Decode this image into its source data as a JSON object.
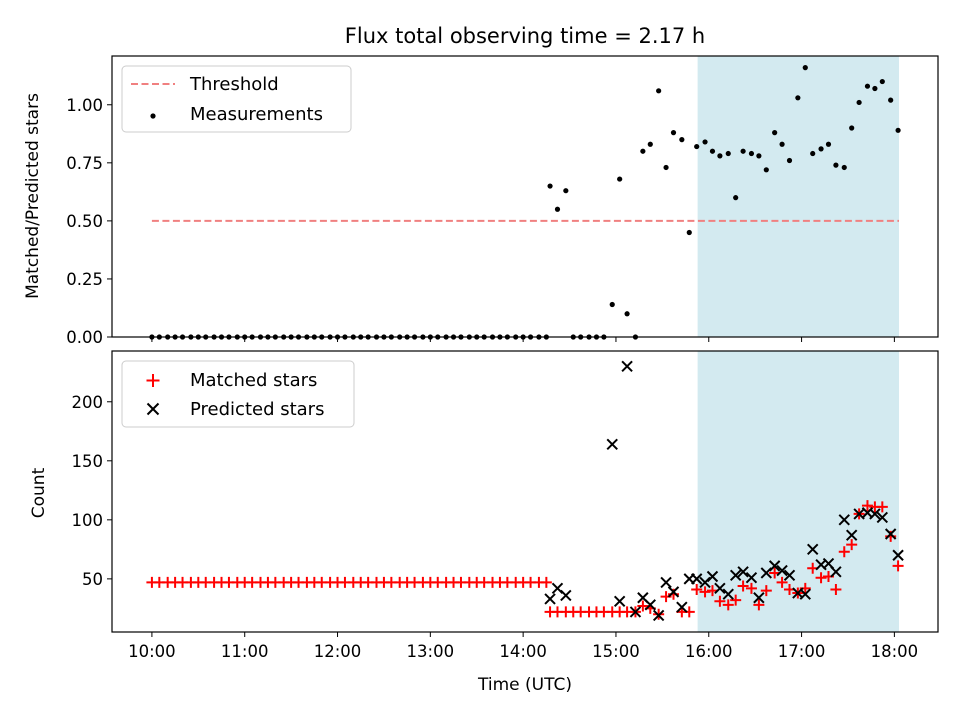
{
  "chart_data": [
    {
      "type": "scatter",
      "title": "Flux total observing time = 2.17 h",
      "xlabel": "",
      "ylabel": "Matched/Predicted stars",
      "xlim": [
        9.57,
        18.47
      ],
      "ylim": [
        0.0,
        1.21
      ],
      "yticks": [
        0.0,
        0.25,
        0.5,
        0.75,
        1.0
      ],
      "ytick_labels": [
        "0.00",
        "0.25",
        "0.50",
        "0.75",
        "1.00"
      ],
      "shaded_region": {
        "x_start": 15.88,
        "x_end": 18.05,
        "color": "#d3eaf0"
      },
      "legend": {
        "placement": "upper left",
        "entries": [
          "Threshold",
          "Measurements"
        ]
      },
      "threshold": {
        "name": "Threshold",
        "value": 0.5,
        "x_start": 10.0,
        "x_end": 18.05,
        "color": "#f08080"
      },
      "series": [
        {
          "name": "Measurements",
          "color": "#000000",
          "points": [
            [
              10.0,
              0
            ],
            [
              10.08,
              0
            ],
            [
              10.17,
              0
            ],
            [
              10.25,
              0
            ],
            [
              10.33,
              0
            ],
            [
              10.42,
              0
            ],
            [
              10.5,
              0
            ],
            [
              10.58,
              0
            ],
            [
              10.67,
              0
            ],
            [
              10.75,
              0
            ],
            [
              10.83,
              0
            ],
            [
              10.92,
              0
            ],
            [
              11.0,
              0
            ],
            [
              11.08,
              0
            ],
            [
              11.17,
              0
            ],
            [
              11.25,
              0
            ],
            [
              11.33,
              0
            ],
            [
              11.42,
              0
            ],
            [
              11.5,
              0
            ],
            [
              11.58,
              0
            ],
            [
              11.67,
              0
            ],
            [
              11.75,
              0
            ],
            [
              11.83,
              0
            ],
            [
              11.92,
              0
            ],
            [
              12.0,
              0
            ],
            [
              12.08,
              0
            ],
            [
              12.17,
              0
            ],
            [
              12.25,
              0
            ],
            [
              12.33,
              0
            ],
            [
              12.42,
              0
            ],
            [
              12.5,
              0
            ],
            [
              12.58,
              0
            ],
            [
              12.67,
              0
            ],
            [
              12.75,
              0
            ],
            [
              12.83,
              0
            ],
            [
              12.92,
              0
            ],
            [
              13.0,
              0
            ],
            [
              13.08,
              0
            ],
            [
              13.17,
              0
            ],
            [
              13.25,
              0
            ],
            [
              13.33,
              0
            ],
            [
              13.42,
              0
            ],
            [
              13.5,
              0
            ],
            [
              13.58,
              0
            ],
            [
              13.67,
              0
            ],
            [
              13.75,
              0
            ],
            [
              13.83,
              0
            ],
            [
              13.92,
              0
            ],
            [
              14.0,
              0
            ],
            [
              14.08,
              0
            ],
            [
              14.17,
              0
            ],
            [
              14.25,
              0
            ],
            [
              14.29,
              0.65
            ],
            [
              14.37,
              0.55
            ],
            [
              14.46,
              0.63
            ],
            [
              14.54,
              0
            ],
            [
              14.62,
              0
            ],
            [
              14.71,
              0
            ],
            [
              14.79,
              0
            ],
            [
              14.87,
              0
            ],
            [
              14.96,
              0.14
            ],
            [
              15.04,
              0.68
            ],
            [
              15.12,
              0.1
            ],
            [
              15.21,
              0.0
            ],
            [
              15.29,
              0.8
            ],
            [
              15.37,
              0.83
            ],
            [
              15.46,
              1.06
            ],
            [
              15.54,
              0.73
            ],
            [
              15.62,
              0.88
            ],
            [
              15.71,
              0.85
            ],
            [
              15.79,
              0.45
            ],
            [
              15.87,
              0.82
            ],
            [
              15.96,
              0.84
            ],
            [
              16.04,
              0.8
            ],
            [
              16.12,
              0.78
            ],
            [
              16.21,
              0.79
            ],
            [
              16.29,
              0.6
            ],
            [
              16.37,
              0.8
            ],
            [
              16.46,
              0.79
            ],
            [
              16.54,
              0.78
            ],
            [
              16.62,
              0.72
            ],
            [
              16.71,
              0.88
            ],
            [
              16.79,
              0.83
            ],
            [
              16.87,
              0.76
            ],
            [
              16.96,
              1.03
            ],
            [
              17.04,
              1.16
            ],
            [
              17.12,
              0.79
            ],
            [
              17.21,
              0.81
            ],
            [
              17.29,
              0.83
            ],
            [
              17.37,
              0.74
            ],
            [
              17.46,
              0.73
            ],
            [
              17.54,
              0.9
            ],
            [
              17.62,
              1.01
            ],
            [
              17.71,
              1.08
            ],
            [
              17.79,
              1.07
            ],
            [
              17.87,
              1.1
            ],
            [
              17.96,
              1.02
            ],
            [
              18.04,
              0.89
            ]
          ]
        }
      ]
    },
    {
      "type": "scatter",
      "title": "",
      "xlabel": "Time (UTC)",
      "ylabel": "Count",
      "xlim": [
        9.57,
        18.47
      ],
      "ylim": [
        5,
        243
      ],
      "yticks": [
        50,
        100,
        150,
        200
      ],
      "ytick_labels": [
        "50",
        "100",
        "150",
        "200"
      ],
      "xticks": [
        10,
        11,
        12,
        13,
        14,
        15,
        16,
        17,
        18
      ],
      "xtick_labels": [
        "10:00",
        "11:00",
        "12:00",
        "13:00",
        "14:00",
        "15:00",
        "16:00",
        "17:00",
        "18:00"
      ],
      "shaded_region": {
        "x_start": 15.88,
        "x_end": 18.05,
        "color": "#d3eaf0"
      },
      "legend": {
        "placement": "upper left",
        "entries": [
          "Matched stars",
          "Predicted stars"
        ]
      },
      "series": [
        {
          "name": "Matched stars",
          "marker": "plus",
          "color": "#ff0000",
          "points": [
            [
              10.0,
              47
            ],
            [
              10.08,
              47
            ],
            [
              10.17,
              47
            ],
            [
              10.25,
              47
            ],
            [
              10.33,
              47
            ],
            [
              10.42,
              47
            ],
            [
              10.5,
              47
            ],
            [
              10.58,
              47
            ],
            [
              10.67,
              47
            ],
            [
              10.75,
              47
            ],
            [
              10.83,
              47
            ],
            [
              10.92,
              47
            ],
            [
              11.0,
              47
            ],
            [
              11.08,
              47
            ],
            [
              11.17,
              47
            ],
            [
              11.25,
              47
            ],
            [
              11.33,
              47
            ],
            [
              11.42,
              47
            ],
            [
              11.5,
              47
            ],
            [
              11.58,
              47
            ],
            [
              11.67,
              47
            ],
            [
              11.75,
              47
            ],
            [
              11.83,
              47
            ],
            [
              11.92,
              47
            ],
            [
              12.0,
              47
            ],
            [
              12.08,
              47
            ],
            [
              12.17,
              47
            ],
            [
              12.25,
              47
            ],
            [
              12.33,
              47
            ],
            [
              12.42,
              47
            ],
            [
              12.5,
              47
            ],
            [
              12.58,
              47
            ],
            [
              12.67,
              47
            ],
            [
              12.75,
              47
            ],
            [
              12.83,
              47
            ],
            [
              12.92,
              47
            ],
            [
              13.0,
              47
            ],
            [
              13.08,
              47
            ],
            [
              13.17,
              47
            ],
            [
              13.25,
              47
            ],
            [
              13.33,
              47
            ],
            [
              13.42,
              47
            ],
            [
              13.5,
              47
            ],
            [
              13.58,
              47
            ],
            [
              13.67,
              47
            ],
            [
              13.75,
              47
            ],
            [
              13.83,
              47
            ],
            [
              13.92,
              47
            ],
            [
              14.0,
              47
            ],
            [
              14.08,
              47
            ],
            [
              14.17,
              47
            ],
            [
              14.25,
              47
            ],
            [
              14.29,
              22
            ],
            [
              14.37,
              22
            ],
            [
              14.46,
              22
            ],
            [
              14.54,
              22
            ],
            [
              14.62,
              22
            ],
            [
              14.71,
              22
            ],
            [
              14.79,
              22
            ],
            [
              14.87,
              22
            ],
            [
              14.96,
              22
            ],
            [
              15.04,
              22
            ],
            [
              15.12,
              22
            ],
            [
              15.21,
              22
            ],
            [
              15.29,
              27
            ],
            [
              15.37,
              25
            ],
            [
              15.46,
              20
            ],
            [
              15.54,
              35
            ],
            [
              15.62,
              37
            ],
            [
              15.71,
              22
            ],
            [
              15.79,
              22
            ],
            [
              15.87,
              41
            ],
            [
              15.96,
              39
            ],
            [
              16.04,
              40
            ],
            [
              16.12,
              31
            ],
            [
              16.21,
              28
            ],
            [
              16.29,
              32
            ],
            [
              16.37,
              44
            ],
            [
              16.46,
              42
            ],
            [
              16.54,
              28
            ],
            [
              16.62,
              40
            ],
            [
              16.71,
              55
            ],
            [
              16.79,
              47
            ],
            [
              16.87,
              41
            ],
            [
              16.96,
              38
            ],
            [
              17.04,
              42
            ],
            [
              17.12,
              59
            ],
            [
              17.21,
              51
            ],
            [
              17.29,
              52
            ],
            [
              17.37,
              41
            ],
            [
              17.46,
              73
            ],
            [
              17.54,
              79
            ],
            [
              17.62,
              105
            ],
            [
              17.71,
              112
            ],
            [
              17.79,
              111
            ],
            [
              17.87,
              111
            ],
            [
              17.96,
              86
            ],
            [
              18.04,
              61
            ]
          ]
        },
        {
          "name": "Predicted stars",
          "marker": "x",
          "color": "#000000",
          "points": [
            [
              14.29,
              33
            ],
            [
              14.37,
              42
            ],
            [
              14.46,
              36
            ],
            [
              14.96,
              164
            ],
            [
              15.04,
              31
            ],
            [
              15.12,
              230
            ],
            [
              15.21,
              22
            ],
            [
              15.29,
              34
            ],
            [
              15.37,
              28
            ],
            [
              15.46,
              19
            ],
            [
              15.54,
              47
            ],
            [
              15.62,
              39
            ],
            [
              15.71,
              26
            ],
            [
              15.79,
              50
            ],
            [
              15.87,
              50
            ],
            [
              15.96,
              47
            ],
            [
              16.04,
              52
            ],
            [
              16.12,
              42
            ],
            [
              16.21,
              37
            ],
            [
              16.29,
              53
            ],
            [
              16.37,
              56
            ],
            [
              16.46,
              51
            ],
            [
              16.54,
              34
            ],
            [
              16.62,
              55
            ],
            [
              16.71,
              61
            ],
            [
              16.79,
              57
            ],
            [
              16.87,
              53
            ],
            [
              16.96,
              38
            ],
            [
              17.04,
              37
            ],
            [
              17.12,
              75
            ],
            [
              17.21,
              62
            ],
            [
              17.29,
              63
            ],
            [
              17.37,
              56
            ],
            [
              17.46,
              100
            ],
            [
              17.54,
              87
            ],
            [
              17.62,
              105
            ],
            [
              17.71,
              106
            ],
            [
              17.79,
              105
            ],
            [
              17.87,
              102
            ],
            [
              17.96,
              88
            ],
            [
              18.04,
              70
            ]
          ]
        }
      ]
    }
  ]
}
